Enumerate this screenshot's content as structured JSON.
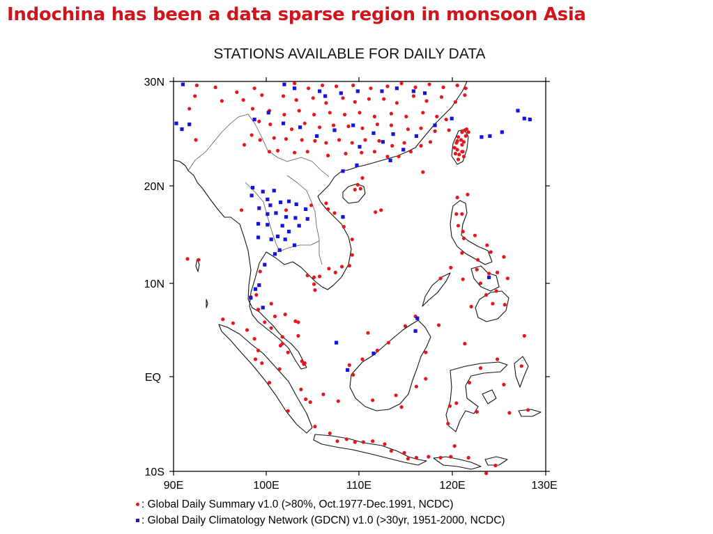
{
  "slide": {
    "title": "Indochina has been a data sparse region in monsoon Asia"
  },
  "map": {
    "title": "STATIONS AVAILABLE FOR DAILY DATA",
    "lat_labels": [
      "30N",
      "20N",
      "10N",
      "EQ",
      "10S"
    ],
    "lon_labels": [
      "90E",
      "100E",
      "110E",
      "120E",
      "130E"
    ],
    "lon_range": [
      90,
      130
    ],
    "lat_range": [
      -10,
      30
    ]
  },
  "legend": {
    "gsod": ": Global Daily Summary v1.0 (>80%, Oct.1977-Dec.1991, NCDC)",
    "gdcn": ": Global Daily Climatology Network (GDCN) v1.0 (>30yr, 1951-2000, NCDC)"
  },
  "colors": {
    "title_red": "#d0141c",
    "gsod_marker": "#e8141c",
    "gdcn_marker": "#1414e0",
    "coast": "#000000"
  },
  "stations": {
    "gsod": [
      [
        92.5,
        29.6
      ],
      [
        94.5,
        29.4
      ],
      [
        96.8,
        28.9
      ],
      [
        98.7,
        29.3
      ],
      [
        103.0,
        29.8
      ],
      [
        104.5,
        29.3
      ],
      [
        106.0,
        29.6
      ],
      [
        107.5,
        29.5
      ],
      [
        109.3,
        29.6
      ],
      [
        111.2,
        29.3
      ],
      [
        113.0,
        29.5
      ],
      [
        114.5,
        29.8
      ],
      [
        116.0,
        29.4
      ],
      [
        117.5,
        29.7
      ],
      [
        119.0,
        29.4
      ],
      [
        120.5,
        29.6
      ],
      [
        121.4,
        29.3
      ],
      [
        92.3,
        28.5
      ],
      [
        95.2,
        28.0
      ],
      [
        97.5,
        28.1
      ],
      [
        99.5,
        28.6
      ],
      [
        101.8,
        28.5
      ],
      [
        103.2,
        28.1
      ],
      [
        105.0,
        28.3
      ],
      [
        106.4,
        27.8
      ],
      [
        108.2,
        28.3
      ],
      [
        109.5,
        27.9
      ],
      [
        111.0,
        28.2
      ],
      [
        112.6,
        28.2
      ],
      [
        114.0,
        27.8
      ],
      [
        115.8,
        28.5
      ],
      [
        117.2,
        28.0
      ],
      [
        118.8,
        28.4
      ],
      [
        120.3,
        27.9
      ],
      [
        121.3,
        28.6
      ],
      [
        91.7,
        27.2
      ],
      [
        98.5,
        27.2
      ],
      [
        100.3,
        27.0
      ],
      [
        101.9,
        26.6
      ],
      [
        103.5,
        27.0
      ],
      [
        105.1,
        26.6
      ],
      [
        106.8,
        26.8
      ],
      [
        108.4,
        26.6
      ],
      [
        110.0,
        26.8
      ],
      [
        111.6,
        26.4
      ],
      [
        113.4,
        26.7
      ],
      [
        115.0,
        26.4
      ],
      [
        116.8,
        26.8
      ],
      [
        118.3,
        26.4
      ],
      [
        119.3,
        26.1
      ],
      [
        99.2,
        25.9
      ],
      [
        100.4,
        25.6
      ],
      [
        102.7,
        25.1
      ],
      [
        104.1,
        25.7
      ],
      [
        105.7,
        25.3
      ],
      [
        107.2,
        25.5
      ],
      [
        108.8,
        25.4
      ],
      [
        110.3,
        25.2
      ],
      [
        111.9,
        25.6
      ],
      [
        113.4,
        25.5
      ],
      [
        115.2,
        25.1
      ],
      [
        116.6,
        25.2
      ],
      [
        118.1,
        24.9
      ],
      [
        119.6,
        25.0
      ],
      [
        98.4,
        24.5
      ],
      [
        99.3,
        24.0
      ],
      [
        100.8,
        24.2
      ],
      [
        102.1,
        24.1
      ],
      [
        103.8,
        24.0
      ],
      [
        105.2,
        23.9
      ],
      [
        106.4,
        23.7
      ],
      [
        107.8,
        24.0
      ],
      [
        109.2,
        23.7
      ],
      [
        110.6,
        24.0
      ],
      [
        112.1,
        23.9
      ],
      [
        113.5,
        23.4
      ],
      [
        114.8,
        23.7
      ],
      [
        116.6,
        23.4
      ],
      [
        117.6,
        23.8
      ],
      [
        92.4,
        24.0
      ],
      [
        97.6,
        23.5
      ],
      [
        100.3,
        22.8
      ],
      [
        101.2,
        22.9
      ],
      [
        103.0,
        22.7
      ],
      [
        104.4,
        22.8
      ],
      [
        106.6,
        22.4
      ],
      [
        108.5,
        22.6
      ],
      [
        110.2,
        22.7
      ],
      [
        111.6,
        22.8
      ],
      [
        113.0,
        22.3
      ],
      [
        114.2,
        22.3
      ],
      [
        115.5,
        22.8
      ],
      [
        110.3,
        20.1
      ],
      [
        109.8,
        19.4
      ],
      [
        109.5,
        18.9
      ],
      [
        110.1,
        19.0
      ],
      [
        116.8,
        20.7
      ],
      [
        111.7,
        16.6
      ],
      [
        112.3,
        16.8
      ],
      [
        97.3,
        16.8
      ],
      [
        91.5,
        11.8
      ],
      [
        92.7,
        11.7
      ],
      [
        102.1,
        16.8
      ],
      [
        104.8,
        17.3
      ],
      [
        106.4,
        17.5
      ],
      [
        106.6,
        16.9
      ],
      [
        107.3,
        16.5
      ],
      [
        108.2,
        16.1
      ],
      [
        108.3,
        15.1
      ],
      [
        109.2,
        13.8
      ],
      [
        109.2,
        12.2
      ],
      [
        108.9,
        11.1
      ],
      [
        108.1,
        11.0
      ],
      [
        107.4,
        10.4
      ],
      [
        106.7,
        10.8
      ],
      [
        105.7,
        10.0
      ],
      [
        105.1,
        9.2
      ],
      [
        105.2,
        8.6
      ],
      [
        105.1,
        9.9
      ],
      [
        104.4,
        10.1
      ],
      [
        120.2,
        23.2
      ],
      [
        120.5,
        23.9
      ],
      [
        120.6,
        24.3
      ],
      [
        121.0,
        24.8
      ],
      [
        121.5,
        25.1
      ],
      [
        121.7,
        24.8
      ],
      [
        121.4,
        24.4
      ],
      [
        121.2,
        23.8
      ],
      [
        121.0,
        22.8
      ],
      [
        120.7,
        22.5
      ],
      [
        120.5,
        23.0
      ],
      [
        120.3,
        22.6
      ],
      [
        120.6,
        22.0
      ],
      [
        121.2,
        22.3
      ],
      [
        121.0,
        23.5
      ],
      [
        120.9,
        24.0
      ],
      [
        121.3,
        25.0
      ],
      [
        121.1,
        22.8
      ],
      [
        120.4,
        23.7
      ],
      [
        120.5,
        18.1
      ],
      [
        121.6,
        18.4
      ],
      [
        121.0,
        16.4
      ],
      [
        120.4,
        16.4
      ],
      [
        120.6,
        15.2
      ],
      [
        121.1,
        14.6
      ],
      [
        121.2,
        13.9
      ],
      [
        122.4,
        14.2
      ],
      [
        123.7,
        13.2
      ],
      [
        124.1,
        12.5
      ],
      [
        121.0,
        12.4
      ],
      [
        122.7,
        11.7
      ],
      [
        123.9,
        10.3
      ],
      [
        122.6,
        10.7
      ],
      [
        124.8,
        10.4
      ],
      [
        125.5,
        12.0
      ],
      [
        125.9,
        9.8
      ],
      [
        123.0,
        9.3
      ],
      [
        124.7,
        8.5
      ],
      [
        125.6,
        7.1
      ],
      [
        124.3,
        7.2
      ],
      [
        122.0,
        6.9
      ],
      [
        121.1,
        9.7
      ],
      [
        118.7,
        9.8
      ],
      [
        119.8,
        10.9
      ],
      [
        123.6,
        8.1
      ],
      [
        99.3,
        10.5
      ],
      [
        98.3,
        7.9
      ],
      [
        98.9,
        8.1
      ],
      [
        100.5,
        7.2
      ],
      [
        99.1,
        6.6
      ],
      [
        99.8,
        5.3
      ],
      [
        100.5,
        4.7
      ],
      [
        100.9,
        5.9
      ],
      [
        101.7,
        3.8
      ],
      [
        103.1,
        5.4
      ],
      [
        103.4,
        3.9
      ],
      [
        101.7,
        3.1
      ],
      [
        102.3,
        2.2
      ],
      [
        103.8,
        1.3
      ],
      [
        103.4,
        5.3
      ],
      [
        104.1,
        1.1
      ],
      [
        102.0,
        6.1
      ],
      [
        101.5,
        2.9
      ],
      [
        95.3,
        5.6
      ],
      [
        96.4,
        5.2
      ],
      [
        97.9,
        4.5
      ],
      [
        98.7,
        3.6
      ],
      [
        99.1,
        2.4
      ],
      [
        98.8,
        1.5
      ],
      [
        99.5,
        1.1
      ],
      [
        100.3,
        -0.9
      ],
      [
        101.4,
        0.5
      ],
      [
        102.3,
        -3.8
      ],
      [
        103.7,
        -1.6
      ],
      [
        104.7,
        -2.9
      ],
      [
        105.2,
        -5.4
      ],
      [
        106.8,
        -6.1
      ],
      [
        107.6,
        -6.9
      ],
      [
        108.6,
        -6.7
      ],
      [
        109.5,
        -7.0
      ],
      [
        110.4,
        -7.0
      ],
      [
        111.4,
        -6.9
      ],
      [
        112.7,
        -7.2
      ],
      [
        113.4,
        -7.9
      ],
      [
        114.8,
        -8.1
      ],
      [
        115.2,
        -8.7
      ],
      [
        116.1,
        -8.6
      ],
      [
        117.4,
        -8.5
      ],
      [
        118.7,
        -8.6
      ],
      [
        119.8,
        -8.5
      ],
      [
        121.7,
        -8.6
      ],
      [
        123.6,
        -10.2
      ],
      [
        124.6,
        -9.4
      ],
      [
        106.1,
        -2.1
      ],
      [
        104.2,
        -2.6
      ],
      [
        107.7,
        -2.8
      ],
      [
        108.9,
        0.9
      ],
      [
        109.3,
        -0.1
      ],
      [
        111.4,
        -2.7
      ],
      [
        113.9,
        -2.2
      ],
      [
        114.5,
        -3.4
      ],
      [
        116.1,
        -1.3
      ],
      [
        117.1,
        -0.5
      ],
      [
        117.1,
        2.2
      ],
      [
        118.5,
        5.0
      ],
      [
        116.0,
        5.9
      ],
      [
        114.9,
        4.9
      ],
      [
        113.1,
        3.2
      ],
      [
        111.9,
        2.4
      ],
      [
        110.3,
        1.5
      ],
      [
        104.0,
        1.0
      ],
      [
        110.9,
        4.2
      ],
      [
        119.5,
        -5.1
      ],
      [
        120.4,
        -3.0
      ],
      [
        119.7,
        -3.3
      ],
      [
        120.2,
        -7.4
      ],
      [
        122.6,
        -3.9
      ],
      [
        124.8,
        1.5
      ],
      [
        123.0,
        0.6
      ],
      [
        121.8,
        -0.9
      ],
      [
        125.5,
        -1.1
      ],
      [
        127.4,
        0.8
      ],
      [
        127.7,
        3.9
      ],
      [
        128.1,
        -3.7
      ],
      [
        126.1,
        -4.0
      ],
      [
        121.3,
        3.1
      ]
    ],
    "gdcn": [
      [
        91.0,
        29.7
      ],
      [
        101.9,
        29.7
      ],
      [
        103.0,
        29.3
      ],
      [
        105.7,
        29.0
      ],
      [
        106.3,
        28.5
      ],
      [
        108.0,
        28.8
      ],
      [
        109.8,
        29.0
      ],
      [
        112.4,
        29.0
      ],
      [
        114.0,
        29.3
      ],
      [
        115.8,
        29.0
      ],
      [
        117.0,
        28.8
      ],
      [
        90.3,
        25.7
      ],
      [
        91.7,
        25.6
      ],
      [
        90.9,
        25.1
      ],
      [
        98.7,
        26.1
      ],
      [
        100.2,
        26.8
      ],
      [
        101.8,
        25.7
      ],
      [
        103.6,
        25.3
      ],
      [
        105.4,
        24.4
      ],
      [
        107.3,
        25.0
      ],
      [
        109.3,
        25.5
      ],
      [
        111.5,
        24.7
      ],
      [
        113.6,
        24.6
      ],
      [
        116.1,
        24.4
      ],
      [
        118.1,
        25.5
      ],
      [
        119.9,
        26.2
      ],
      [
        123.1,
        24.3
      ],
      [
        124.0,
        24.4
      ],
      [
        125.3,
        24.8
      ],
      [
        127.7,
        26.2
      ],
      [
        128.3,
        26.1
      ],
      [
        127.0,
        27.0
      ],
      [
        110.0,
        23.3
      ],
      [
        112.5,
        23.8
      ],
      [
        114.7,
        23.0
      ],
      [
        113.3,
        21.9
      ],
      [
        109.7,
        21.4
      ],
      [
        108.2,
        20.8
      ],
      [
        98.5,
        19.1
      ],
      [
        98.4,
        18.3
      ],
      [
        99.6,
        18.7
      ],
      [
        100.8,
        18.8
      ],
      [
        100.1,
        17.9
      ],
      [
        100.4,
        17.3
      ],
      [
        101.5,
        17.6
      ],
      [
        102.4,
        17.7
      ],
      [
        103.2,
        17.4
      ],
      [
        104.2,
        16.9
      ],
      [
        99.2,
        17.0
      ],
      [
        100.1,
        16.4
      ],
      [
        101.0,
        16.5
      ],
      [
        102.1,
        16.1
      ],
      [
        103.1,
        16.0
      ],
      [
        104.4,
        15.9
      ],
      [
        99.1,
        15.4
      ],
      [
        100.1,
        15.3
      ],
      [
        101.7,
        15.2
      ],
      [
        102.4,
        14.6
      ],
      [
        103.5,
        15.2
      ],
      [
        100.5,
        13.8
      ],
      [
        101.2,
        14.1
      ],
      [
        102.0,
        13.8
      ],
      [
        103.0,
        13.2
      ],
      [
        101.4,
        12.7
      ],
      [
        100.9,
        12.3
      ],
      [
        99.1,
        14.0
      ],
      [
        99.8,
        11.2
      ],
      [
        99.2,
        9.1
      ],
      [
        98.8,
        8.7
      ],
      [
        98.3,
        7.8
      ],
      [
        99.6,
        6.8
      ],
      [
        108.2,
        16.1
      ],
      [
        107.5,
        3.2
      ],
      [
        116.0,
        4.4
      ],
      [
        111.5,
        2.1
      ],
      [
        108.7,
        0.4
      ],
      [
        116.2,
        5.7
      ],
      [
        123.9,
        9.9
      ]
    ]
  }
}
